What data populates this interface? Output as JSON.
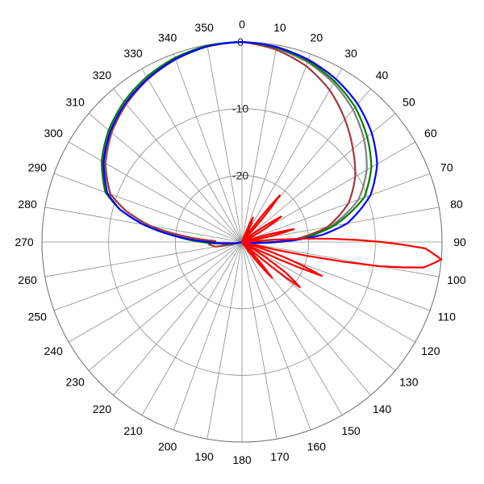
{
  "chart_data": {
    "type": "polar-line",
    "title": "",
    "angle_unit": "degrees",
    "angle_direction": "clockwise",
    "zero_at": "top",
    "angle_ticks": [
      0,
      10,
      20,
      30,
      40,
      50,
      60,
      70,
      80,
      90,
      100,
      110,
      120,
      130,
      140,
      150,
      160,
      170,
      180,
      190,
      200,
      210,
      220,
      230,
      240,
      250,
      260,
      270,
      280,
      290,
      300,
      310,
      320,
      330,
      340,
      350
    ],
    "radial_unit": "dB",
    "radial_range": [
      -30,
      0
    ],
    "radial_ticks": [
      0,
      -10,
      -20
    ],
    "radial_tick_labels": [
      "0",
      "-10",
      "-20"
    ],
    "grid": true,
    "outer_ring_dB": 0,
    "series": [
      {
        "color": "#0000ff",
        "points": [
          [
            0,
            0
          ],
          [
            10,
            -0.3
          ],
          [
            20,
            -0.9
          ],
          [
            30,
            -1.8
          ],
          [
            40,
            -3
          ],
          [
            50,
            -4.6
          ],
          [
            60,
            -6.6
          ],
          [
            70,
            -9.5
          ],
          [
            80,
            -14
          ],
          [
            85,
            -18
          ],
          [
            90,
            -25
          ],
          [
            95,
            -29
          ],
          [
            105,
            -30
          ],
          [
            180,
            -30
          ],
          [
            255,
            -30
          ],
          [
            265,
            -28
          ],
          [
            270,
            -25
          ],
          [
            275,
            -20
          ],
          [
            280,
            -15
          ],
          [
            285,
            -11
          ],
          [
            290,
            -8.5
          ],
          [
            300,
            -6
          ],
          [
            310,
            -4.2
          ],
          [
            320,
            -2.8
          ],
          [
            330,
            -1.7
          ],
          [
            340,
            -0.8
          ],
          [
            350,
            -0.2
          ],
          [
            360,
            0
          ]
        ]
      },
      {
        "color": "#008000",
        "points": [
          [
            0,
            0
          ],
          [
            10,
            -0.4
          ],
          [
            20,
            -1.1
          ],
          [
            30,
            -2.2
          ],
          [
            40,
            -3.6
          ],
          [
            50,
            -5.5
          ],
          [
            60,
            -7.6
          ],
          [
            70,
            -10.5
          ],
          [
            80,
            -16
          ],
          [
            88,
            -22
          ],
          [
            92,
            -28
          ],
          [
            100,
            -30
          ],
          [
            180,
            -30
          ],
          [
            255,
            -30
          ],
          [
            265,
            -27
          ],
          [
            270,
            -24
          ],
          [
            275,
            -20
          ],
          [
            280,
            -15
          ],
          [
            285,
            -11
          ],
          [
            290,
            -8.2
          ],
          [
            300,
            -5.7
          ],
          [
            310,
            -3.9
          ],
          [
            320,
            -2.5
          ],
          [
            330,
            -1.4
          ],
          [
            340,
            -0.6
          ],
          [
            350,
            -0.1
          ],
          [
            360,
            0
          ]
        ]
      },
      {
        "color": "#a0393b",
        "points": [
          [
            0,
            0
          ],
          [
            10,
            -0.7
          ],
          [
            20,
            -1.9
          ],
          [
            30,
            -3.7
          ],
          [
            40,
            -6
          ],
          [
            50,
            -8.3
          ],
          [
            60,
            -10.4
          ],
          [
            70,
            -13
          ],
          [
            80,
            -17
          ],
          [
            87,
            -22
          ],
          [
            92,
            -27
          ],
          [
            100,
            -30
          ],
          [
            180,
            -30
          ],
          [
            255,
            -30
          ],
          [
            260,
            -26
          ],
          [
            266,
            -25
          ],
          [
            272,
            -26
          ],
          [
            276,
            -21
          ],
          [
            280,
            -16
          ],
          [
            285,
            -12
          ],
          [
            290,
            -9
          ],
          [
            300,
            -6.2
          ],
          [
            310,
            -4.4
          ],
          [
            320,
            -3
          ],
          [
            330,
            -1.8
          ],
          [
            340,
            -0.8
          ],
          [
            350,
            -0.2
          ],
          [
            360,
            0
          ]
        ]
      },
      {
        "color": "#808080",
        "points": [
          [
            0,
            0
          ],
          [
            10,
            -0.5
          ],
          [
            20,
            -1.3
          ],
          [
            30,
            -2.5
          ],
          [
            40,
            -4.1
          ],
          [
            50,
            -6.1
          ],
          [
            60,
            -8.4
          ],
          [
            70,
            -11.4
          ],
          [
            80,
            -16.5
          ],
          [
            88,
            -22
          ],
          [
            93,
            -28
          ],
          [
            100,
            -30
          ],
          [
            180,
            -30
          ],
          [
            255,
            -30
          ],
          [
            265,
            -27
          ],
          [
            270,
            -24.5
          ],
          [
            275,
            -21
          ],
          [
            280,
            -16
          ],
          [
            285,
            -12
          ],
          [
            290,
            -9
          ],
          [
            300,
            -6.4
          ],
          [
            310,
            -4.5
          ],
          [
            320,
            -3
          ],
          [
            330,
            -1.8
          ],
          [
            340,
            -0.9
          ],
          [
            350,
            -0.2
          ],
          [
            360,
            0
          ]
        ]
      },
      {
        "color": "#ff0000",
        "points": [
          [
            0,
            -30
          ],
          [
            20,
            -30
          ],
          [
            24,
            -26
          ],
          [
            27,
            -27
          ],
          [
            30,
            -30
          ],
          [
            35,
            -30
          ],
          [
            39,
            -21
          ],
          [
            43,
            -29
          ],
          [
            46,
            -30
          ],
          [
            52,
            -30
          ],
          [
            57,
            -23
          ],
          [
            63,
            -29
          ],
          [
            66,
            -30
          ],
          [
            72,
            -30
          ],
          [
            76,
            -22
          ],
          [
            80,
            -28
          ],
          [
            83,
            -30
          ],
          [
            85,
            -30
          ],
          [
            87,
            -20
          ],
          [
            90,
            -9
          ],
          [
            92,
            -2.5
          ],
          [
            95,
            0
          ],
          [
            98,
            -2.5
          ],
          [
            100,
            -9
          ],
          [
            102,
            -20
          ],
          [
            104,
            -30
          ],
          [
            106,
            -30
          ],
          [
            109,
            -25
          ],
          [
            113,
            -17
          ],
          [
            116,
            -27
          ],
          [
            118,
            -30
          ],
          [
            121,
            -30
          ],
          [
            125,
            -22
          ],
          [
            128,
            -19
          ],
          [
            131,
            -27
          ],
          [
            133,
            -30
          ],
          [
            136,
            -30
          ],
          [
            140,
            -23
          ],
          [
            144,
            -28
          ],
          [
            146,
            -30
          ],
          [
            180,
            -30
          ],
          [
            360,
            -30
          ]
        ]
      }
    ]
  }
}
